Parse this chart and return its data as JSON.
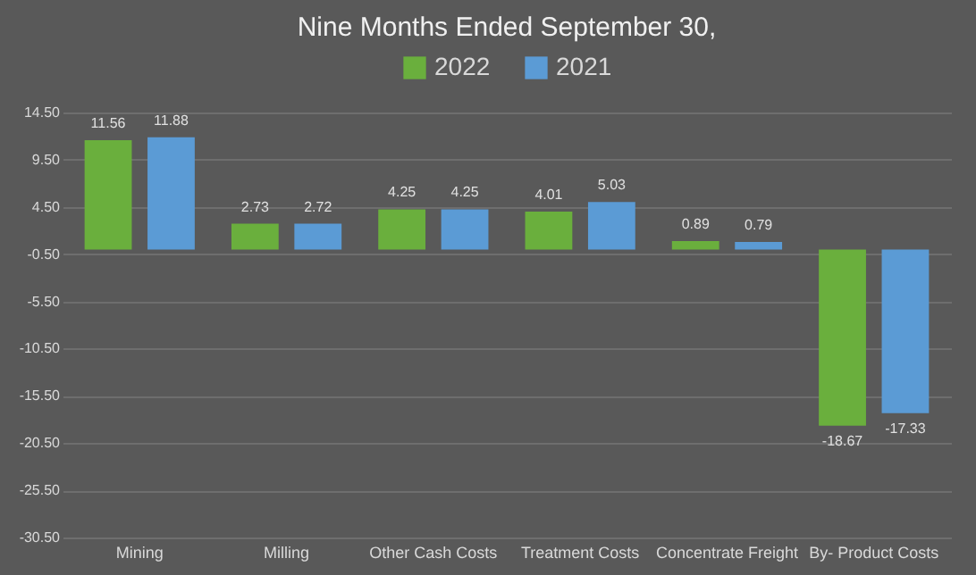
{
  "chart_data": {
    "type": "bar",
    "title": "Nine Months Ended September 30,",
    "categories": [
      "Mining",
      "Milling",
      "Other Cash Costs",
      "Treatment Costs",
      "Concentrate Freight",
      "By- Product Costs"
    ],
    "series": [
      {
        "name": "2022",
        "color": "#6aaf3d",
        "values": [
          11.56,
          2.73,
          4.25,
          4.01,
          0.89,
          -18.67
        ]
      },
      {
        "name": "2021",
        "color": "#5b9bd5",
        "values": [
          11.88,
          2.72,
          4.25,
          5.03,
          0.79,
          -17.33
        ]
      }
    ],
    "ylim": [
      -30.5,
      14.5
    ],
    "yticks": [
      {
        "value": -30.5,
        "label": "-30.50"
      },
      {
        "value": -25.5,
        "label": "-25.50"
      },
      {
        "value": -20.5,
        "label": "-20.50"
      },
      {
        "value": -15.5,
        "label": "-15.50"
      },
      {
        "value": -10.5,
        "label": "-10.50"
      },
      {
        "value": -5.5,
        "label": "-5.50"
      },
      {
        "value": -0.5,
        "label": "-0.50"
      },
      {
        "value": 4.5,
        "label": "4.50"
      },
      {
        "value": 9.5,
        "label": "9.50"
      },
      {
        "value": 14.5,
        "label": "14.50"
      }
    ],
    "grid": "y",
    "legend": "top",
    "data_labels": true
  }
}
